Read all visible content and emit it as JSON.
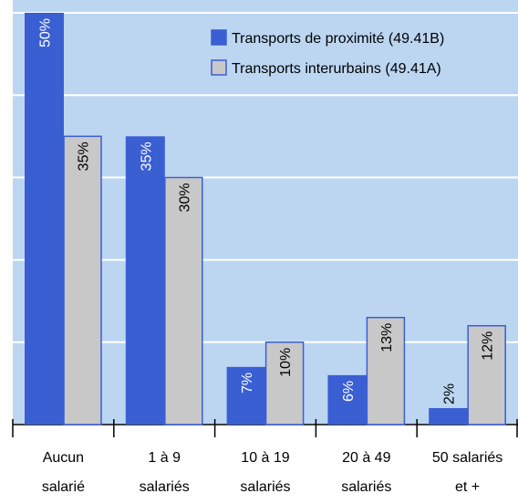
{
  "chart_data": {
    "type": "bar",
    "categories": [
      [
        "Aucun",
        "salarié"
      ],
      [
        "1 à 9",
        "salariés"
      ],
      [
        "10 à 19",
        "salariés"
      ],
      [
        "20 à 49",
        "salariés"
      ],
      [
        "50 salariés",
        "et +"
      ]
    ],
    "series": [
      {
        "name": "Transports de proximité (49.41B)",
        "color": "#3a5fd3",
        "values": [
          50,
          35,
          7,
          6,
          2
        ],
        "value_labels": [
          "50%",
          "35%",
          "7%",
          "6%",
          "2%"
        ]
      },
      {
        "name": "Transports interurbains (49.41A)",
        "color": "#c8c8c8",
        "values": [
          35,
          30,
          10,
          13,
          12
        ],
        "value_labels": [
          "35%",
          "30%",
          "10%",
          "13%",
          "12%"
        ]
      }
    ],
    "ylim": [
      0,
      50
    ],
    "yticks": [
      0,
      10,
      20,
      30,
      40,
      50
    ],
    "grid": true,
    "legend": "top-right"
  }
}
